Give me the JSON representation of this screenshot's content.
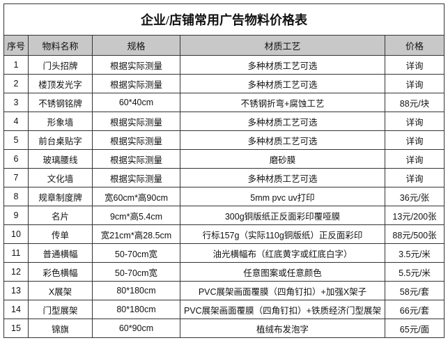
{
  "title": "企业/店铺常用广告物料价格表",
  "columns": [
    "序号",
    "物料名称",
    "规格",
    "材质工艺",
    "价格"
  ],
  "rows": [
    [
      "1",
      "门头招牌",
      "根据实际测量",
      "多种材质工艺可选",
      "详询"
    ],
    [
      "2",
      "楼顶发光字",
      "根据实际测量",
      "多种材质工艺可选",
      "详询"
    ],
    [
      "3",
      "不锈钢铭牌",
      "60*40cm",
      "不锈钢折弯+腐蚀工艺",
      "88元/块"
    ],
    [
      "4",
      "形象墙",
      "根据实际测量",
      "多种材质工艺可选",
      "详询"
    ],
    [
      "5",
      "前台桌贴字",
      "根据实际测量",
      "多种材质工艺可选",
      "详询"
    ],
    [
      "6",
      "玻璃腰线",
      "根据实际测量",
      "磨砂膜",
      "详询"
    ],
    [
      "7",
      "文化墙",
      "根据实际测量",
      "多种材质工艺可选",
      "详询"
    ],
    [
      "8",
      "规章制度牌",
      "宽60cm*高90cm",
      "5mm pvc uv打印",
      "36元/张"
    ],
    [
      "9",
      "名片",
      "9cm*高5.4cm",
      "300g铜版纸正反面彩印覆哑膜",
      "13元/200张"
    ],
    [
      "10",
      "传单",
      "宽21cm*高28.5cm",
      "行标157g（实际110g铜版纸）正反面彩印",
      "88元/500张"
    ],
    [
      "11",
      "普通横幅",
      "50-70cm宽",
      "油光横幅布（红底黄字或红底白字）",
      "3.5元/米"
    ],
    [
      "12",
      "彩色横幅",
      "50-70cm宽",
      "任意图案或任意颜色",
      "5.5元/米"
    ],
    [
      "13",
      "X展架",
      "80*180cm",
      "PVC展架画面覆膜（四角钉扣）+加强X架子",
      "58元/套"
    ],
    [
      "14",
      "门型展架",
      "80*180cm",
      "PVC展架画面覆膜（四角钉扣）+铁质经济门型展架",
      "66元/套"
    ],
    [
      "15",
      "锦旗",
      "60*90cm",
      "植绒布发泡字",
      "65元/面"
    ]
  ],
  "colors": {
    "header_bg": "#c8c8c8",
    "border": "#333333"
  }
}
